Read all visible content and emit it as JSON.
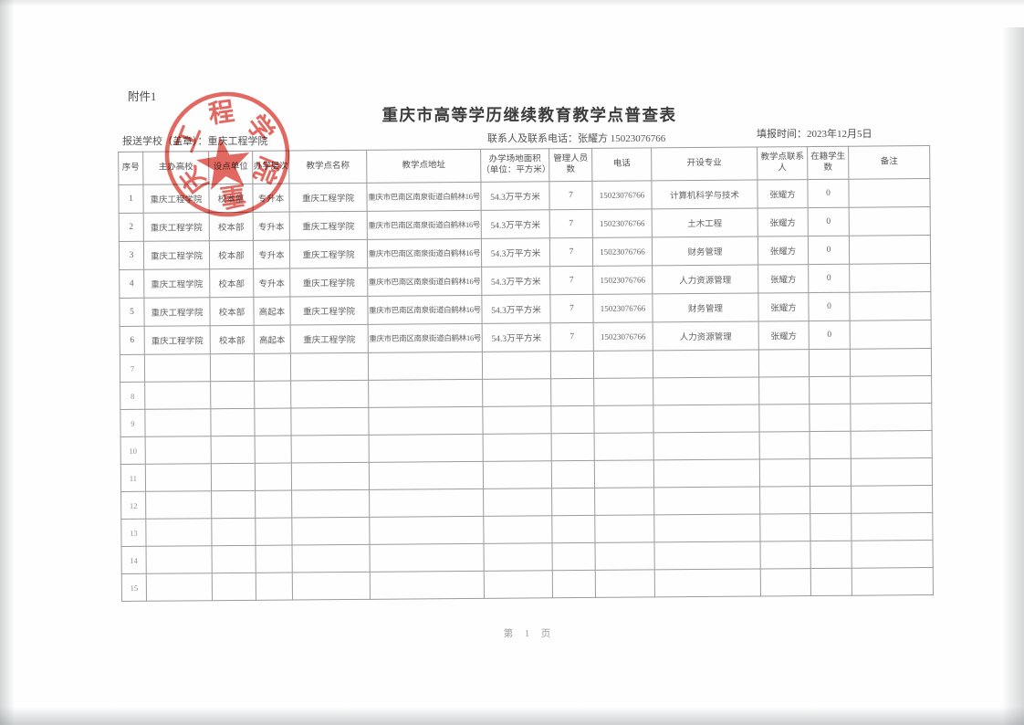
{
  "page": {
    "attachment_label": "附件1",
    "title": "重庆市高等学历继续教育教学点普查表",
    "report_school_line": "报送学校（盖章）：重庆工程学院",
    "contact_line": "联系人及联系电话：张耀方  15023076766",
    "fill_date_line": "填报时间：2023年12月5日",
    "footer_page_label": "第 1 页"
  },
  "stamp": {
    "organization": "重庆工程学院",
    "ring_chars": [
      "重",
      "庆",
      "工",
      "程",
      "学",
      "院"
    ],
    "color": "#df544b"
  },
  "table": {
    "headers": [
      "序号",
      "主办高校",
      "设点单位",
      "办学层次",
      "教学点名称",
      "教学点地址",
      "办学场地面积\n（单位：平方米）",
      "管理人员数",
      "电话",
      "开设专业",
      "教学点联系人",
      "在籍学生数",
      "备注"
    ],
    "rows": [
      [
        "1",
        "重庆工程学院",
        "校本部",
        "专升本",
        "重庆工程学院",
        "重庆市巴南区南泉街道白鹤林16号",
        "54.3万平方米",
        "7",
        "15023076766",
        "计算机科学与技术",
        "张耀方",
        "0",
        ""
      ],
      [
        "2",
        "重庆工程学院",
        "校本部",
        "专升本",
        "重庆工程学院",
        "重庆市巴南区南泉街道白鹤林16号",
        "54.3万平方米",
        "7",
        "15023076766",
        "土木工程",
        "张耀方",
        "0",
        ""
      ],
      [
        "3",
        "重庆工程学院",
        "校本部",
        "专升本",
        "重庆工程学院",
        "重庆市巴南区南泉街道白鹤林16号",
        "54.3万平方米",
        "7",
        "15023076766",
        "财务管理",
        "张耀方",
        "0",
        ""
      ],
      [
        "4",
        "重庆工程学院",
        "校本部",
        "专升本",
        "重庆工程学院",
        "重庆市巴南区南泉街道白鹤林16号",
        "54.3万平方米",
        "7",
        "15023076766",
        "人力资源管理",
        "张耀方",
        "0",
        ""
      ],
      [
        "5",
        "重庆工程学院",
        "校本部",
        "高起本",
        "重庆工程学院",
        "重庆市巴南区南泉街道白鹤林16号",
        "54.3万平方米",
        "7",
        "15023076766",
        "财务管理",
        "张耀方",
        "0",
        ""
      ],
      [
        "6",
        "重庆工程学院",
        "校本部",
        "高起本",
        "重庆工程学院",
        "重庆市巴南区南泉街道白鹤林16号",
        "54.3万平方米",
        "7",
        "15023076766",
        "人力资源管理",
        "张耀方",
        "0",
        ""
      ]
    ],
    "empty_row_numbers": [
      "7",
      "8",
      "9",
      "10",
      "11",
      "12",
      "13",
      "14",
      "15"
    ]
  }
}
